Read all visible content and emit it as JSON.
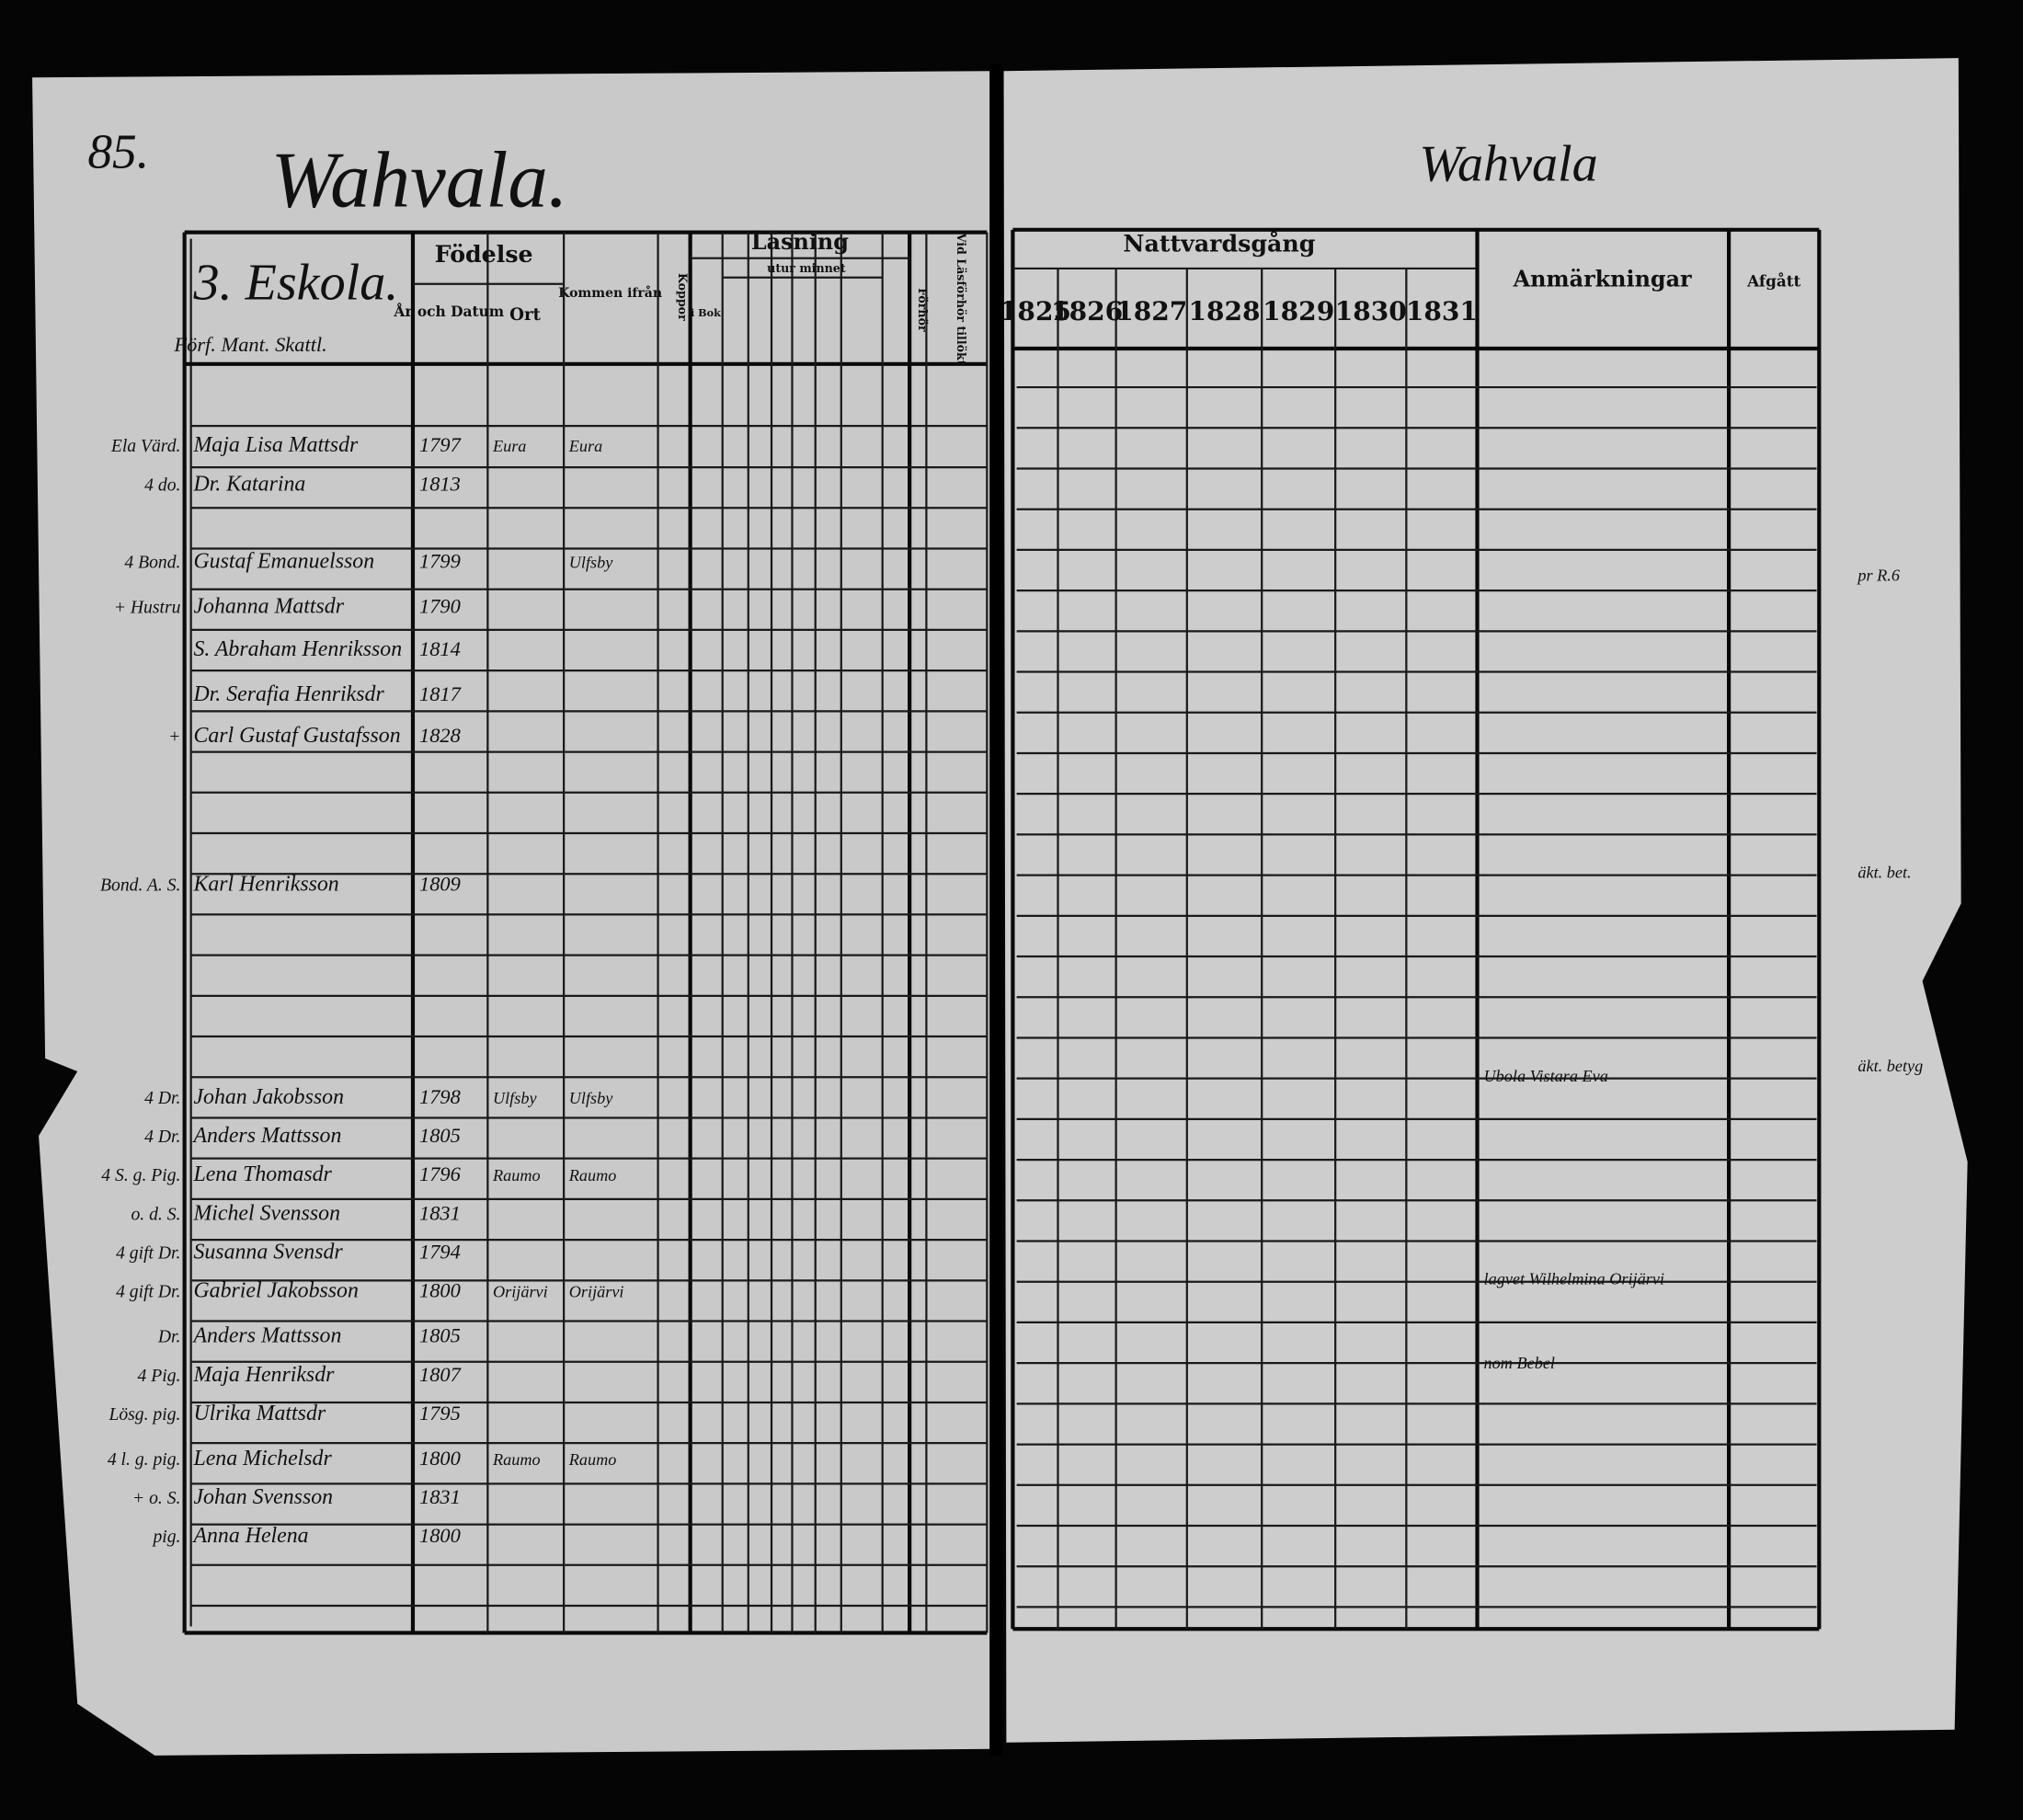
{
  "header": {
    "page_number": "85.",
    "village": "Wahvala.",
    "household": "3. Eskola.",
    "household_note": "Förf. Mant. Skattl.",
    "right_heading": "Wahvala"
  },
  "left_columns": {
    "fodelse": "Födelse",
    "ar_datum": "År och Datum",
    "ort": "Ort",
    "kommen": "Kommen ifrån",
    "koppor": "Koppor",
    "lasning": "Läsning",
    "utur_minnet": "utur minnet",
    "i_bok": "i Bok",
    "forhor": "Förhör",
    "larodom": "Vid Läsförhör tillökt"
  },
  "right_columns": {
    "nattvardsgang": "Nattvardsgång",
    "years": [
      "1825",
      "1826",
      "1827",
      "1828",
      "1829",
      "1830",
      "1831"
    ],
    "anmarkningar": "Anmärkningar",
    "afgatt": "Afgått"
  },
  "rows": [
    {
      "margin": "Ela Värd.",
      "name": "Maja Lisa Mattsdr",
      "born": "1797",
      "place": "Eura",
      "from": "Eura"
    },
    {
      "margin": "4 do.",
      "name": "Dr. Katarina",
      "born": "1813",
      "place": "",
      "from": ""
    },
    {
      "margin": "4 Bond.",
      "name": "Gustaf Emanuelsson",
      "born": "1799",
      "place": "",
      "from": "Ulfsby"
    },
    {
      "margin": "+ Hustru",
      "name": "Johanna Mattsdr",
      "born": "1790",
      "place": "",
      "from": ""
    },
    {
      "margin": "",
      "name": "S. Abraham Henriksson",
      "born": "1814",
      "place": "",
      "from": ""
    },
    {
      "margin": "",
      "name": "Dr. Serafia Henriksdr",
      "born": "1817",
      "place": "",
      "from": ""
    },
    {
      "margin": "+",
      "name": "Carl Gustaf Gustafsson",
      "born": "1828",
      "place": "",
      "from": ""
    },
    {
      "margin": "Bond. A. S.",
      "name": "Karl Henriksson",
      "born": "1809",
      "place": "",
      "from": ""
    },
    {
      "margin": "4 Dr.",
      "name": "Johan Jakobsson",
      "born": "1798",
      "place": "Ulfsby",
      "from": "Ulfsby"
    },
    {
      "margin": "4 Dr.",
      "name": "Anders Mattsson",
      "born": "1805",
      "place": "",
      "from": ""
    },
    {
      "margin": "4 S. g. Pig.",
      "name": "Lena Thomasdr",
      "born": "1796",
      "place": "Raumo",
      "from": "Raumo"
    },
    {
      "margin": "o. d. S.",
      "name": "Michel Svensson",
      "born": "1831",
      "place": "",
      "from": ""
    },
    {
      "margin": "4 gift Dr.",
      "name": "Susanna Svensdr",
      "born": "1794",
      "place": "",
      "from": ""
    },
    {
      "margin": "4 gift Dr.",
      "name": "Gabriel Jakobsson",
      "born": "1800",
      "place": "Orijärvi",
      "from": "Orijärvi"
    },
    {
      "margin": "Dr.",
      "name": "Anders Mattsson",
      "born": "1805",
      "place": "",
      "from": ""
    },
    {
      "margin": "4 Pig.",
      "name": "Maja Henriksdr",
      "born": "1807",
      "place": "",
      "from": ""
    },
    {
      "margin": "Lösg. pig.",
      "name": "Ulrika Mattsdr",
      "born": "1795",
      "place": "",
      "from": ""
    },
    {
      "margin": "4 l. g. pig.",
      "name": "Lena Michelsdr",
      "born": "1800",
      "place": "Raumo",
      "from": "Raumo"
    },
    {
      "margin": "+ o. S.",
      "name": "Johan Svensson",
      "born": "1831",
      "place": "",
      "from": ""
    },
    {
      "margin": "pig.",
      "name": "Anna Helena",
      "born": "1800",
      "place": "",
      "from": ""
    }
  ],
  "notes": [
    "Ubola Vistara Eva",
    "lagvet Wilhelmina Orijärvi",
    "nom Bebel",
    "pr R.6",
    "äkt. bet.",
    "äkt. betyg"
  ]
}
